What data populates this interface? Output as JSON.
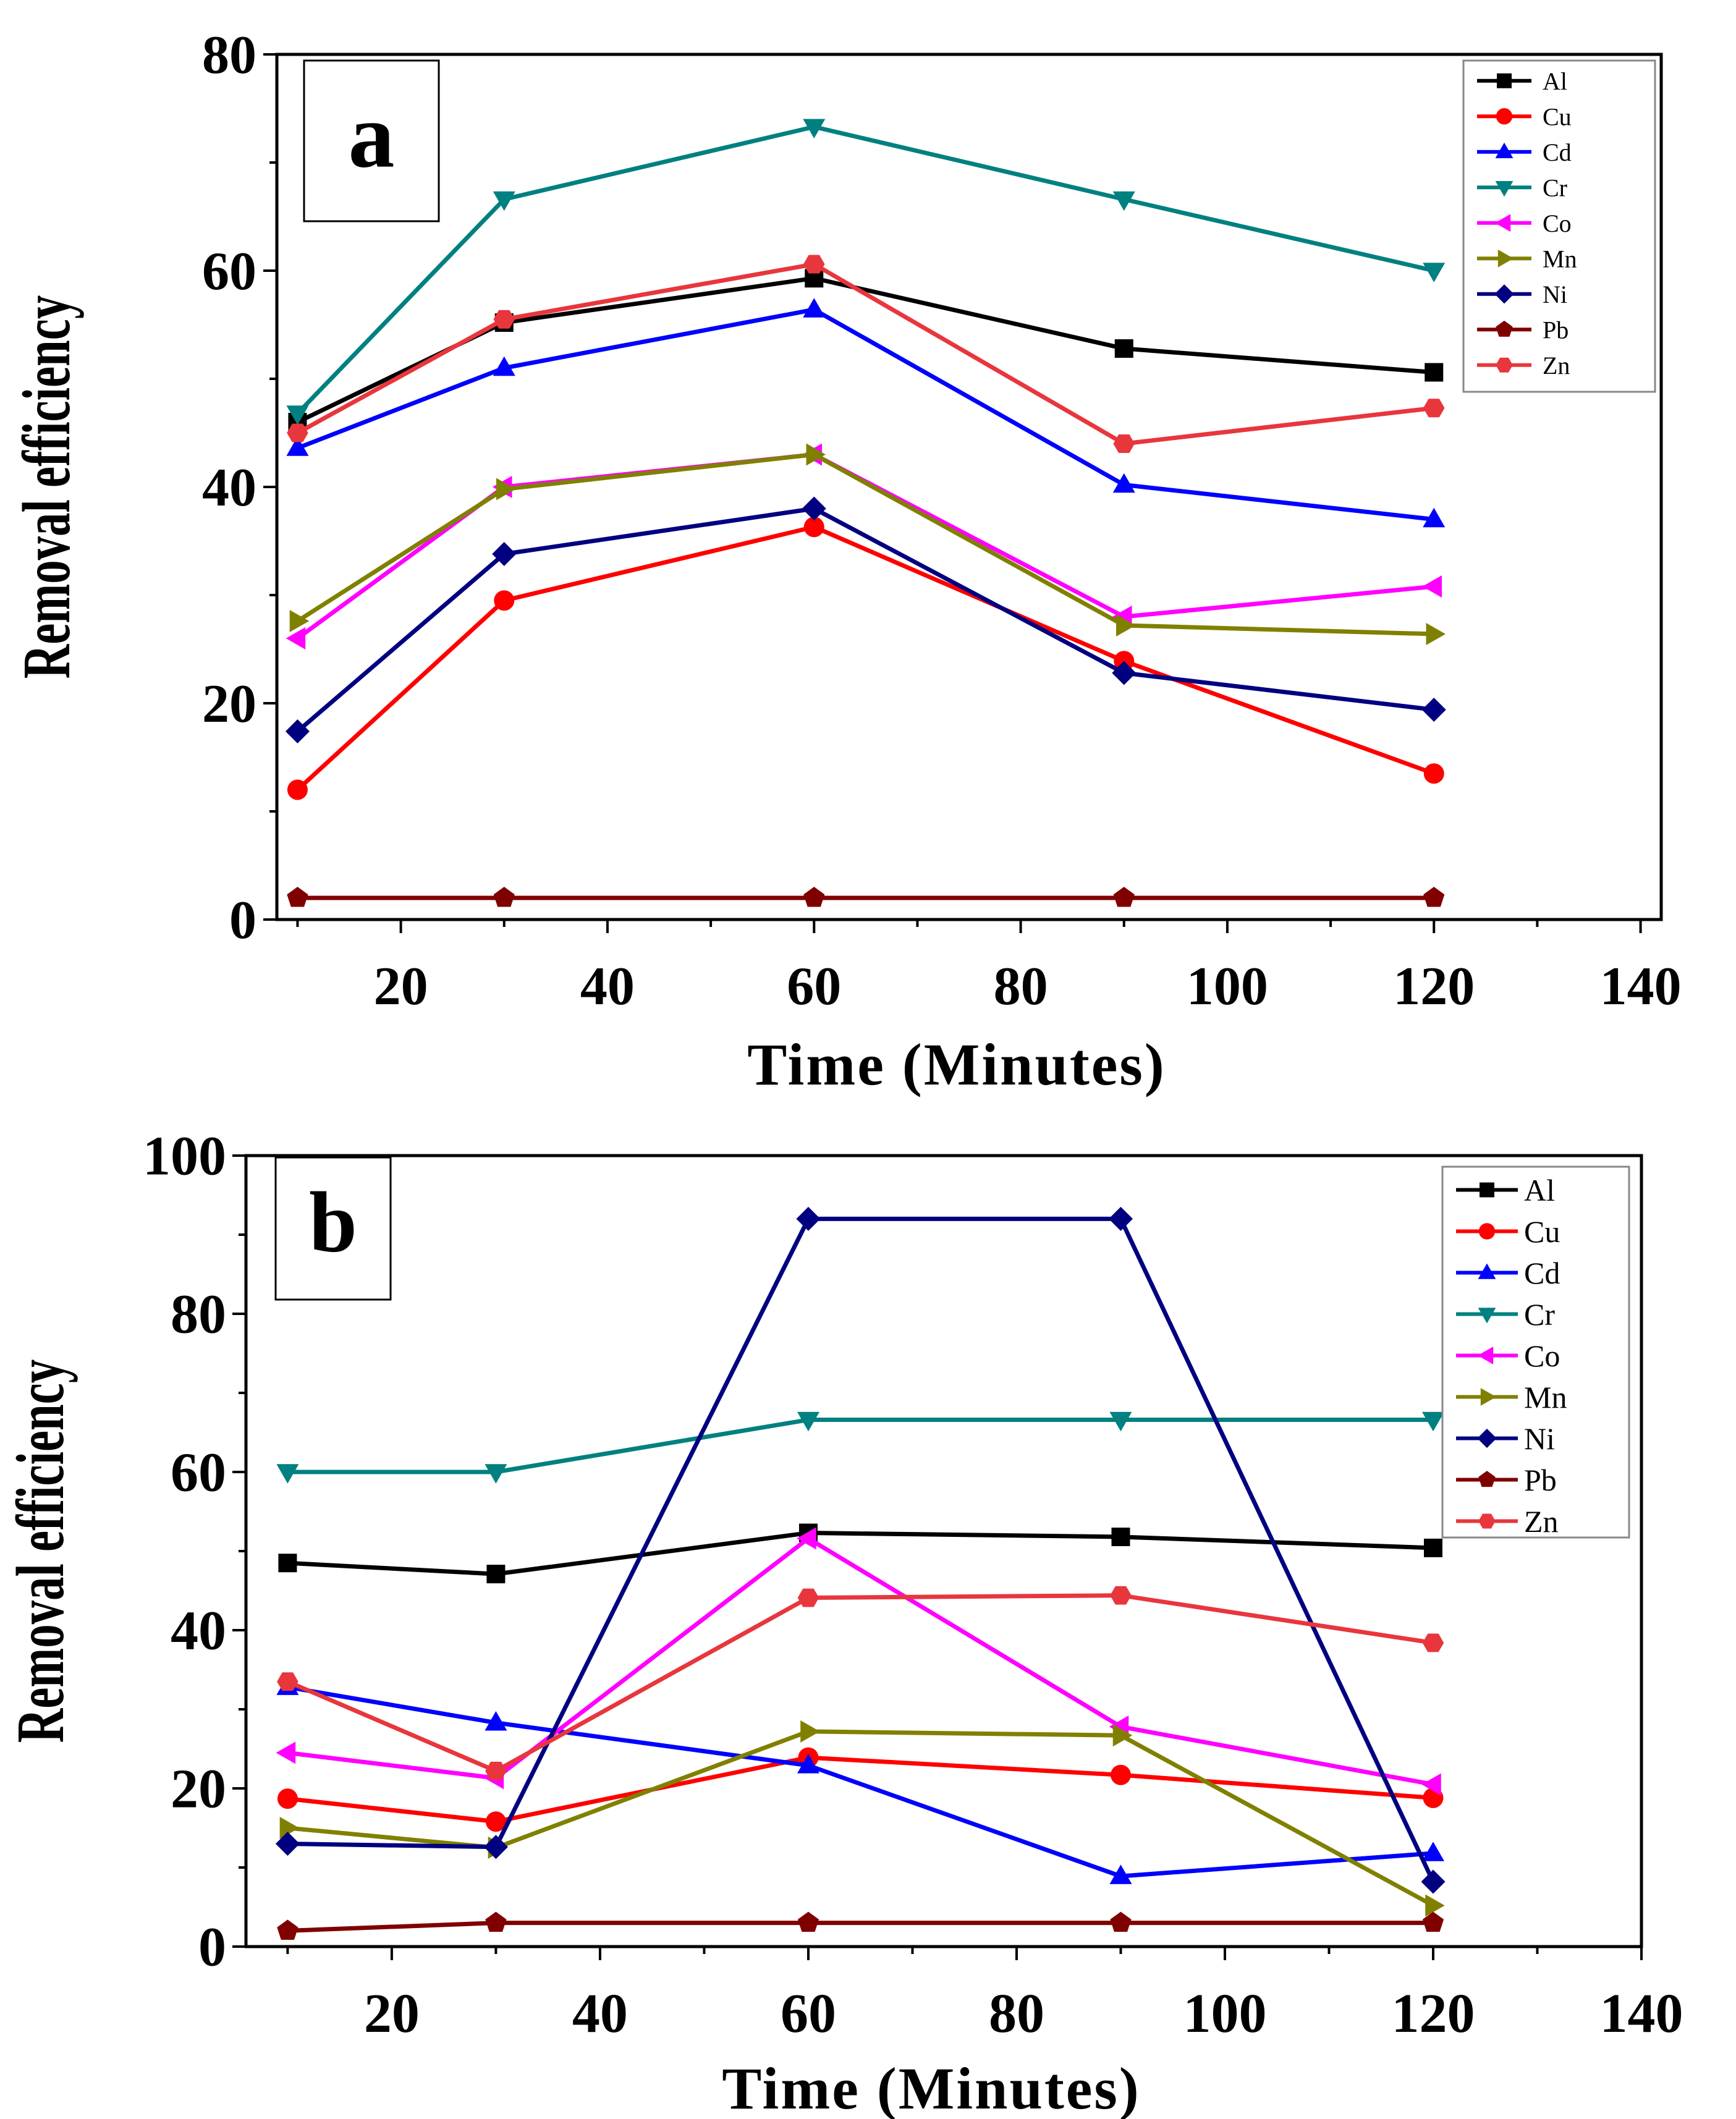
{
  "chart_data": [
    {
      "type": "line",
      "panel_label": "a",
      "xlabel": "Time (Minutes)",
      "ylabel": "Removal efficiency",
      "xlim": [
        8,
        142
      ],
      "ylim": [
        0,
        80
      ],
      "xticks": [
        20,
        40,
        60,
        80,
        100,
        120,
        140
      ],
      "yticks": [
        0,
        20,
        40,
        60,
        80
      ],
      "x": [
        10,
        30,
        60,
        90,
        120
      ],
      "legend_position": "top-right",
      "series": [
        {
          "name": "Al",
          "color": "#000000",
          "marker": "square",
          "values": [
            46,
            55.2,
            59.3,
            52.8,
            50.6
          ]
        },
        {
          "name": "Cu",
          "color": "#ff0000",
          "marker": "circle",
          "values": [
            12,
            29.5,
            36.3,
            23.9,
            13.5
          ]
        },
        {
          "name": "Cd",
          "color": "#0000ff",
          "marker": "triangle-up",
          "values": [
            43.6,
            51,
            56.4,
            40.2,
            37
          ]
        },
        {
          "name": "Cr",
          "color": "#008080",
          "marker": "triangle-down",
          "values": [
            46.8,
            66.6,
            73.3,
            66.6,
            60
          ]
        },
        {
          "name": "Co",
          "color": "#ff00ff",
          "marker": "triangle-left",
          "values": [
            26,
            40,
            43,
            28,
            30.8
          ]
        },
        {
          "name": "Mn",
          "color": "#808000",
          "marker": "triangle-right",
          "values": [
            27.6,
            39.8,
            43,
            27.2,
            26.4
          ]
        },
        {
          "name": "Ni",
          "color": "#000080",
          "marker": "diamond",
          "values": [
            17.4,
            33.8,
            38,
            22.8,
            19.4
          ]
        },
        {
          "name": "Pb",
          "color": "#800000",
          "marker": "pentagon",
          "values": [
            2,
            2,
            2,
            2,
            2
          ]
        },
        {
          "name": "Zn",
          "color": "#e8363d",
          "marker": "hexagon",
          "values": [
            45,
            55.5,
            60.6,
            44,
            47.3
          ]
        }
      ]
    },
    {
      "type": "line",
      "panel_label": "b",
      "xlabel": "Time (Minutes)",
      "ylabel": "Removal efficiency",
      "xlim": [
        6,
        140
      ],
      "ylim": [
        0,
        100
      ],
      "xticks": [
        20,
        40,
        60,
        80,
        100,
        120,
        140
      ],
      "yticks": [
        0,
        20,
        40,
        60,
        80,
        100
      ],
      "x": [
        10,
        30,
        60,
        90,
        120
      ],
      "legend_position": "top-right",
      "series": [
        {
          "name": "Al",
          "color": "#000000",
          "marker": "square",
          "values": [
            48.5,
            47.1,
            52.3,
            51.8,
            50.4
          ]
        },
        {
          "name": "Cu",
          "color": "#ff0000",
          "marker": "circle",
          "values": [
            18.7,
            15.8,
            23.9,
            21.7,
            18.8
          ]
        },
        {
          "name": "Cd",
          "color": "#0000ff",
          "marker": "triangle-up",
          "values": [
            32.8,
            28.3,
            22.9,
            8.9,
            11.8
          ]
        },
        {
          "name": "Cr",
          "color": "#008080",
          "marker": "triangle-down",
          "values": [
            60,
            60,
            66.6,
            66.6,
            66.6
          ]
        },
        {
          "name": "Co",
          "color": "#ff00ff",
          "marker": "triangle-left",
          "values": [
            24.5,
            21.3,
            51.6,
            27.8,
            20.5
          ]
        },
        {
          "name": "Mn",
          "color": "#808000",
          "marker": "triangle-right",
          "values": [
            15,
            12.5,
            27.2,
            26.7,
            5.2
          ]
        },
        {
          "name": "Ni",
          "color": "#000080",
          "marker": "diamond",
          "values": [
            13,
            12.6,
            92,
            92,
            8.2
          ]
        },
        {
          "name": "Pb",
          "color": "#800000",
          "marker": "pentagon",
          "values": [
            2,
            3,
            3,
            3,
            3
          ]
        },
        {
          "name": "Zn",
          "color": "#e8363d",
          "marker": "hexagon",
          "values": [
            33.5,
            22.2,
            44.1,
            44.4,
            38.4
          ]
        }
      ]
    }
  ]
}
